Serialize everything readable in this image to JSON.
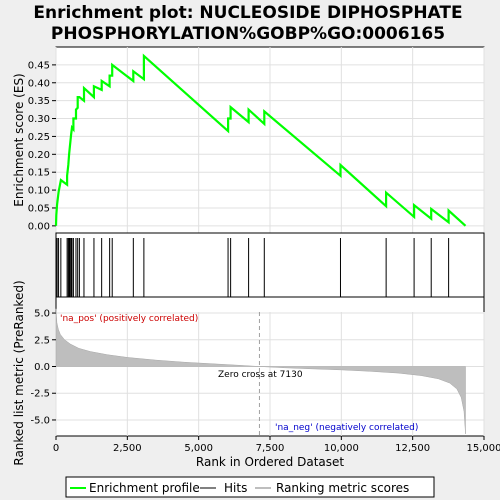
{
  "chart_data": {
    "type": "line",
    "title_line1": "Enrichment plot: NUCLEOSIDE DIPHOSPHATE",
    "title_line2": "PHOSPHORYLATION%GOBP%GO:0006165",
    "xlabel": "Rank in Ordered Dataset",
    "ylabel_top": "Enrichment score (ES)",
    "ylabel_bottom": "Ranked list metric (PreRanked)",
    "xlim": [
      0,
      15000
    ],
    "x_ticks": [
      0,
      2500,
      5000,
      7500,
      10000,
      12500,
      15000
    ],
    "x_tick_labels": [
      "0",
      "2,500",
      "5,000",
      "7,500",
      "10,000",
      "12,500",
      "15,000"
    ],
    "es_ylim": [
      -0.02,
      0.5
    ],
    "es_ticks": [
      0.0,
      0.05,
      0.1,
      0.15,
      0.2,
      0.25,
      0.3,
      0.35,
      0.4,
      0.45
    ],
    "es_tick_labels": [
      "0.00",
      "0.05",
      "0.10",
      "0.15",
      "0.20",
      "0.25",
      "0.30",
      "0.35",
      "0.40",
      "0.45"
    ],
    "metric_ylim": [
      -6.5,
      6.5
    ],
    "metric_ticks": [
      5.0,
      2.5,
      0.0,
      -2.5,
      -5.0
    ],
    "metric_tick_labels": [
      "5.0",
      "2.5",
      "0.0",
      "-2.5",
      "-5.0"
    ],
    "max_rank": 14350,
    "zero_cross_rank": 7130,
    "zero_cross_label": "Zero cross at 7130",
    "pos_label": "'na_pos' (positively correlated)",
    "neg_label": "'na_neg' (negatively correlated)",
    "hits": [
      10,
      40,
      90,
      170,
      390,
      430,
      460,
      490,
      530,
      560,
      610,
      700,
      760,
      820,
      980,
      1330,
      1600,
      1880,
      1970,
      2710,
      3080,
      6030,
      6120,
      6750,
      7300,
      9970,
      11570,
      12550,
      13150,
      13760
    ],
    "es_points": [
      [
        0,
        0.0
      ],
      [
        10,
        0.03
      ],
      [
        40,
        0.06
      ],
      [
        90,
        0.095
      ],
      [
        170,
        0.128
      ],
      [
        390,
        0.115
      ],
      [
        390,
        0.14
      ],
      [
        430,
        0.17
      ],
      [
        460,
        0.2
      ],
      [
        490,
        0.225
      ],
      [
        530,
        0.255
      ],
      [
        560,
        0.275
      ],
      [
        610,
        0.27
      ],
      [
        610,
        0.3
      ],
      [
        700,
        0.3
      ],
      [
        700,
        0.325
      ],
      [
        760,
        0.33
      ],
      [
        760,
        0.36
      ],
      [
        820,
        0.36
      ],
      [
        980,
        0.35
      ],
      [
        980,
        0.385
      ],
      [
        1330,
        0.36
      ],
      [
        1330,
        0.39
      ],
      [
        1600,
        0.38
      ],
      [
        1600,
        0.405
      ],
      [
        1880,
        0.39
      ],
      [
        1880,
        0.42
      ],
      [
        1970,
        0.42
      ],
      [
        1970,
        0.45
      ],
      [
        2710,
        0.405
      ],
      [
        2710,
        0.432
      ],
      [
        3080,
        0.41
      ],
      [
        3080,
        0.475
      ],
      [
        6030,
        0.265
      ],
      [
        6030,
        0.3
      ],
      [
        6120,
        0.3
      ],
      [
        6120,
        0.332
      ],
      [
        6750,
        0.29
      ],
      [
        6750,
        0.325
      ],
      [
        7300,
        0.285
      ],
      [
        7300,
        0.32
      ],
      [
        9970,
        0.14
      ],
      [
        9970,
        0.17
      ],
      [
        11570,
        0.055
      ],
      [
        11570,
        0.093
      ],
      [
        12550,
        0.025
      ],
      [
        12550,
        0.058
      ],
      [
        13150,
        0.02
      ],
      [
        13150,
        0.047
      ],
      [
        13760,
        0.01
      ],
      [
        13760,
        0.043
      ],
      [
        14350,
        0.0
      ]
    ],
    "metric_profile": [
      [
        0,
        5.4
      ],
      [
        30,
        4.1
      ],
      [
        80,
        3.5
      ],
      [
        150,
        3.0
      ],
      [
        300,
        2.5
      ],
      [
        500,
        2.1
      ],
      [
        800,
        1.7
      ],
      [
        1200,
        1.4
      ],
      [
        1800,
        1.1
      ],
      [
        2500,
        0.85
      ],
      [
        3500,
        0.6
      ],
      [
        4500,
        0.4
      ],
      [
        5500,
        0.25
      ],
      [
        6500,
        0.1
      ],
      [
        7130,
        0.0
      ],
      [
        8000,
        -0.12
      ],
      [
        9000,
        -0.22
      ],
      [
        10000,
        -0.32
      ],
      [
        11000,
        -0.45
      ],
      [
        12000,
        -0.62
      ],
      [
        12800,
        -0.85
      ],
      [
        13400,
        -1.15
      ],
      [
        13800,
        -1.55
      ],
      [
        14050,
        -2.1
      ],
      [
        14200,
        -2.9
      ],
      [
        14300,
        -4.2
      ],
      [
        14350,
        -6.3
      ]
    ],
    "ranking_bar_segments": [
      {
        "from": 0,
        "to": 550,
        "color": "#e8001a"
      },
      {
        "from": 550,
        "to": 1300,
        "color": "#f03545"
      },
      {
        "from": 1300,
        "to": 2400,
        "color": "#f45c66"
      },
      {
        "from": 2400,
        "to": 3400,
        "color": "#f67a82"
      },
      {
        "from": 3400,
        "to": 4850,
        "color": "#f7979d"
      },
      {
        "from": 4850,
        "to": 6300,
        "color": "#fbc2d6"
      },
      {
        "from": 6300,
        "to": 7130,
        "color": "#fcd3e6"
      },
      {
        "from": 7130,
        "to": 8000,
        "color": "#e8e4fa"
      },
      {
        "from": 8000,
        "to": 9300,
        "color": "#d8d6f8"
      },
      {
        "from": 9300,
        "to": 10800,
        "color": "#b8b4f2"
      },
      {
        "from": 10800,
        "to": 11700,
        "color": "#8f89ea"
      },
      {
        "from": 11700,
        "to": 13800,
        "color": "#6457e0"
      },
      {
        "from": 13800,
        "to": 14350,
        "color": "#2a10cc"
      }
    ],
    "legend": [
      "Enrichment profile",
      "Hits",
      "Ranking metric scores"
    ],
    "colors": {
      "es_line": "#00ff00",
      "hit": "#000000",
      "metric_fill": "#bebebe",
      "pos_label": "#cc0000",
      "neg_label": "#0000cc",
      "zero_line": "#a0a0a0"
    }
  }
}
